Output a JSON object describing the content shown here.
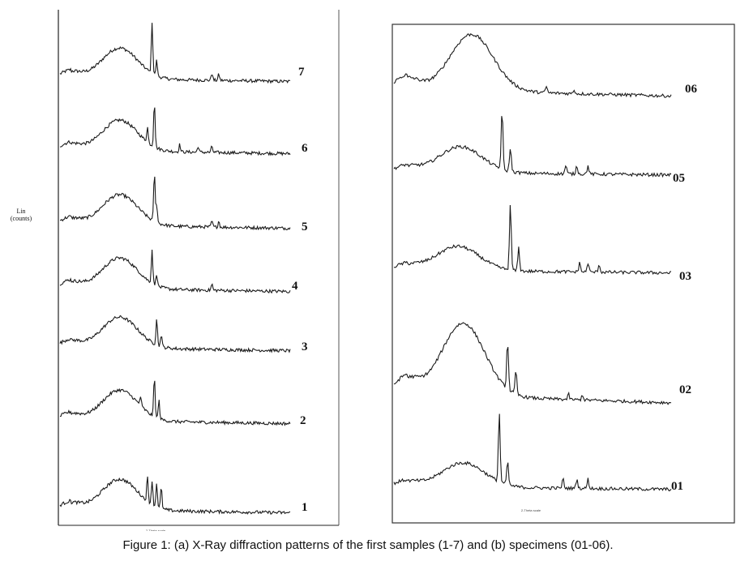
{
  "caption": "Figure 1: (a) X-Ray diffraction patterns of the first samples (1-7) and (b) specimens (01-06).",
  "chart_data": [
    {
      "type": "line",
      "panel": "a",
      "ylabel": [
        "Lin",
        "(counts)"
      ],
      "xlabel": "2-Theta scale",
      "series": [
        {
          "name": "7",
          "peaks": [
            [
              0.4,
              0.85
            ],
            [
              0.42,
              0.25
            ],
            [
              0.66,
              0.12
            ],
            [
              0.69,
              0.1
            ]
          ]
        },
        {
          "name": "6",
          "peaks": [
            [
              0.41,
              0.75
            ],
            [
              0.38,
              0.25
            ],
            [
              0.52,
              0.12
            ],
            [
              0.6,
              0.1
            ],
            [
              0.66,
              0.1
            ]
          ]
        },
        {
          "name": "5",
          "peaks": [
            [
              0.41,
              0.8
            ],
            [
              0.42,
              0.3
            ],
            [
              0.66,
              0.1
            ],
            [
              0.69,
              0.1
            ]
          ]
        },
        {
          "name": "4",
          "peaks": [
            [
              0.4,
              0.55
            ],
            [
              0.42,
              0.2
            ],
            [
              0.66,
              0.1
            ]
          ]
        },
        {
          "name": "3",
          "peaks": [
            [
              0.42,
              0.45
            ],
            [
              0.44,
              0.2
            ]
          ]
        },
        {
          "name": "2",
          "peaks": [
            [
              0.41,
              0.65
            ],
            [
              0.43,
              0.3
            ],
            [
              0.35,
              0.15
            ]
          ]
        },
        {
          "name": "1",
          "peaks": [
            [
              0.38,
              0.4
            ],
            [
              0.4,
              0.4
            ],
            [
              0.42,
              0.4
            ],
            [
              0.44,
              0.35
            ]
          ]
        }
      ]
    },
    {
      "type": "line",
      "panel": "b",
      "xlabel": "2-Theta scale",
      "series": [
        {
          "name": "06",
          "peaks": [
            [
              0.55,
              0.2
            ],
            [
              0.65,
              0.12
            ]
          ]
        },
        {
          "name": "05",
          "peaks": [
            [
              0.39,
              0.85
            ],
            [
              0.42,
              0.35
            ],
            [
              0.62,
              0.12
            ],
            [
              0.66,
              0.12
            ],
            [
              0.7,
              0.12
            ]
          ]
        },
        {
          "name": "03",
          "peaks": [
            [
              0.42,
              0.85
            ],
            [
              0.45,
              0.3
            ],
            [
              0.67,
              0.12
            ],
            [
              0.7,
              0.12
            ],
            [
              0.74,
              0.1
            ]
          ]
        },
        {
          "name": "02",
          "peaks": [
            [
              0.41,
              0.75
            ],
            [
              0.44,
              0.35
            ],
            [
              0.63,
              0.08
            ],
            [
              0.68,
              0.08
            ]
          ]
        },
        {
          "name": "01",
          "peaks": [
            [
              0.38,
              0.9
            ],
            [
              0.41,
              0.3
            ],
            [
              0.61,
              0.12
            ],
            [
              0.66,
              0.12
            ],
            [
              0.7,
              0.12
            ]
          ]
        }
      ]
    }
  ]
}
